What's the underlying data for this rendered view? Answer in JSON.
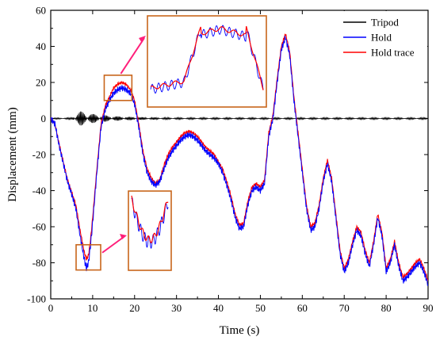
{
  "chart_data": {
    "type": "line",
    "title": "",
    "xlabel": "Time (s)",
    "ylabel": "Displacement (mm)",
    "xlim": [
      0,
      90
    ],
    "ylim": [
      -100,
      60
    ],
    "xticks": [
      0,
      10,
      20,
      30,
      40,
      50,
      60,
      70,
      80,
      90
    ],
    "yticks": [
      -100,
      -80,
      -60,
      -40,
      -20,
      0,
      20,
      40,
      60
    ],
    "grid": false,
    "legend_position": "top-right",
    "series": [
      {
        "name": "Tripod",
        "color": "#000000",
        "description_points": {
          "x": [
            0,
            5,
            6,
            7,
            8,
            9,
            10,
            12,
            14,
            16,
            18,
            20,
            25,
            30,
            40,
            50,
            60,
            70,
            80,
            90
          ],
          "amplitude": [
            0.3,
            0.5,
            3,
            4,
            3.5,
            3,
            2.5,
            2,
            1.5,
            1.2,
            1,
            0.8,
            0.6,
            0.5,
            0.5,
            0.5,
            0.5,
            0.5,
            0.5,
            0.5
          ]
        }
      },
      {
        "name": "Hold",
        "color": "#0000ff",
        "x": [
          0,
          1,
          2,
          3,
          4,
          5,
          6,
          7,
          8,
          8.5,
          9,
          9.5,
          10,
          11,
          12,
          13,
          14,
          15,
          16,
          17,
          18,
          19,
          20,
          21,
          22,
          23,
          24,
          25,
          26,
          27,
          28,
          29,
          30,
          31,
          32,
          33,
          34,
          35,
          36,
          37,
          38,
          39,
          40,
          41,
          42,
          43,
          44,
          45,
          46,
          47,
          48,
          49,
          50,
          51,
          52,
          53,
          54,
          55,
          56,
          57,
          58,
          59,
          60,
          61,
          62,
          63,
          64,
          65,
          66,
          67,
          68,
          69,
          70,
          71,
          72,
          73,
          74,
          75,
          76,
          77,
          78,
          79,
          80,
          81,
          82,
          83,
          84,
          85,
          86,
          87,
          88,
          89,
          90
        ],
        "values": [
          0,
          -3,
          -15,
          -25,
          -35,
          -42,
          -50,
          -65,
          -78,
          -83,
          -80,
          -70,
          -58,
          -30,
          -5,
          5,
          10,
          14,
          16,
          17,
          16,
          14,
          8,
          -5,
          -20,
          -30,
          -35,
          -37,
          -35,
          -28,
          -22,
          -18,
          -15,
          -12,
          -10,
          -9,
          -10,
          -12,
          -15,
          -18,
          -20,
          -22,
          -25,
          -30,
          -37,
          -45,
          -55,
          -61,
          -60,
          -48,
          -40,
          -38,
          -40,
          -36,
          -10,
          0,
          20,
          38,
          45,
          35,
          10,
          -10,
          -30,
          -50,
          -62,
          -60,
          -50,
          -35,
          -25,
          -35,
          -55,
          -75,
          -85,
          -80,
          -70,
          -62,
          -65,
          -75,
          -82,
          -70,
          -55,
          -65,
          -85,
          -80,
          -70,
          -82,
          -90,
          -88,
          -85,
          -82,
          -80,
          -85,
          -92
        ]
      },
      {
        "name": "Hold trace",
        "color": "#ff0000",
        "x": [
          0,
          1,
          2,
          3,
          4,
          5,
          6,
          7,
          8,
          8.5,
          9,
          9.5,
          10,
          11,
          12,
          13,
          14,
          15,
          16,
          17,
          18,
          19,
          20,
          21,
          22,
          23,
          24,
          25,
          26,
          27,
          28,
          29,
          30,
          31,
          32,
          33,
          34,
          35,
          36,
          37,
          38,
          39,
          40,
          41,
          42,
          43,
          44,
          45,
          46,
          47,
          48,
          49,
          50,
          51,
          52,
          53,
          54,
          55,
          56,
          57,
          58,
          59,
          60,
          61,
          62,
          63,
          64,
          65,
          66,
          67,
          68,
          69,
          70,
          71,
          72,
          73,
          74,
          75,
          76,
          77,
          78,
          79,
          80,
          81,
          82,
          83,
          84,
          85,
          86,
          87,
          88,
          89,
          90
        ],
        "values": [
          0,
          -3,
          -14,
          -24,
          -34,
          -41,
          -48,
          -62,
          -74,
          -78,
          -76,
          -67,
          -55,
          -28,
          -3,
          7,
          12,
          17,
          19,
          20,
          19,
          16,
          10,
          -3,
          -18,
          -28,
          -33,
          -36,
          -34,
          -26,
          -20,
          -16,
          -13,
          -10,
          -8,
          -7,
          -8,
          -10,
          -13,
          -16,
          -18,
          -20,
          -24,
          -28,
          -35,
          -43,
          -53,
          -59,
          -58,
          -46,
          -38,
          -36,
          -38,
          -34,
          -8,
          2,
          22,
          40,
          47,
          37,
          12,
          -8,
          -28,
          -48,
          -60,
          -58,
          -48,
          -33,
          -23,
          -33,
          -53,
          -73,
          -83,
          -78,
          -68,
          -60,
          -63,
          -73,
          -80,
          -68,
          -53,
          -63,
          -83,
          -78,
          -68,
          -80,
          -88,
          -86,
          -83,
          -80,
          -78,
          -83,
          -90
        ]
      }
    ],
    "annotations": [
      {
        "type": "zoom-inset",
        "target_x": [
          12,
          22
        ],
        "target_y": [
          10,
          24
        ],
        "inset_position": "top-center"
      },
      {
        "type": "zoom-inset",
        "target_x": [
          5.5,
          11
        ],
        "target_y": [
          -70,
          -84
        ],
        "inset_position": "lower-middle"
      }
    ]
  }
}
